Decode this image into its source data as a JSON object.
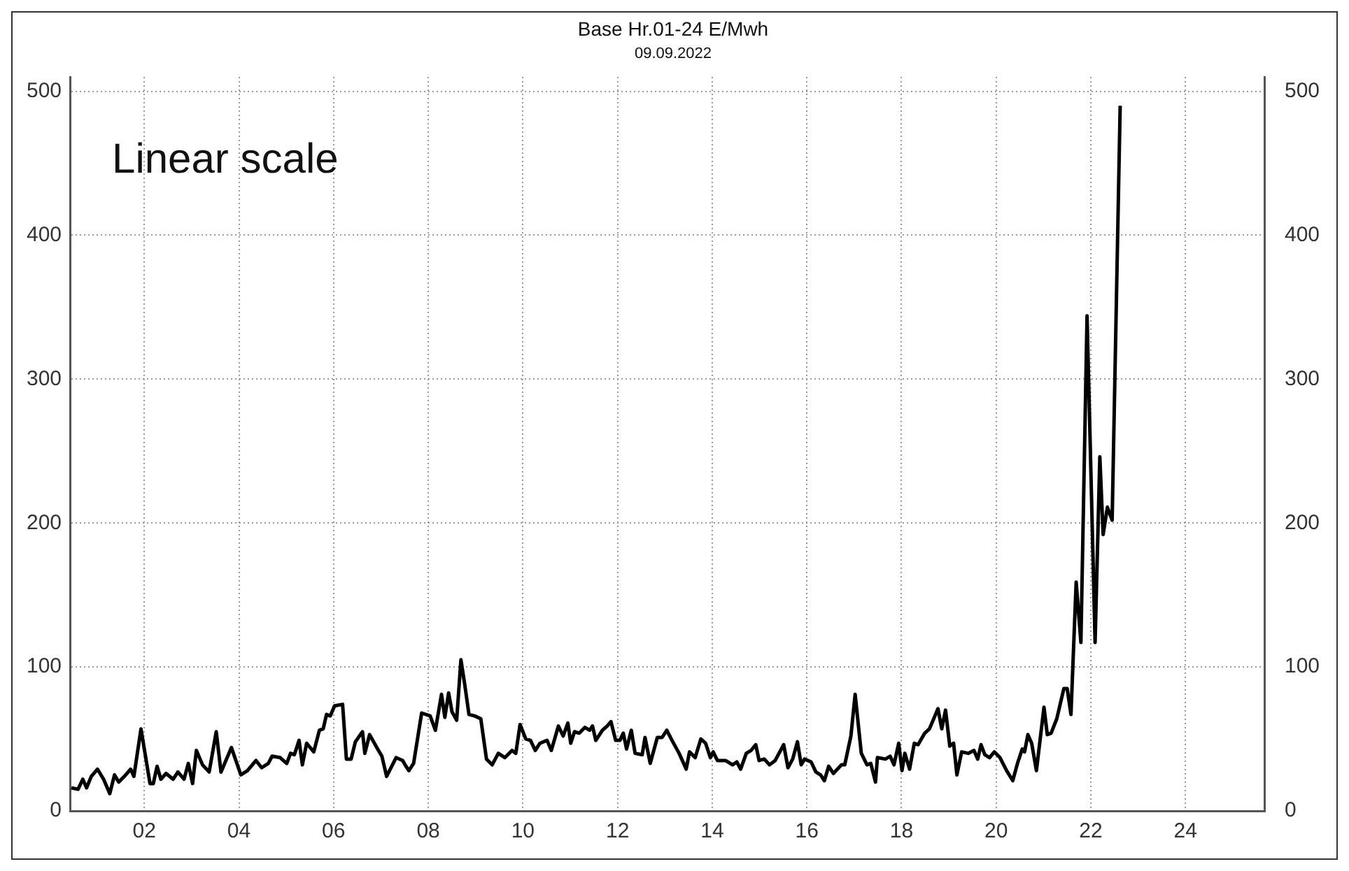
{
  "chart_data": {
    "type": "line",
    "title": "Base Hr.01-24 E/Mwh",
    "subtitle": "09.09.2022",
    "annotations": [
      "Linear scale"
    ],
    "xlim": [
      2000.43,
      2025.68
    ],
    "xticks": [
      {
        "value": 2002,
        "label": "02"
      },
      {
        "value": 2004,
        "label": "04"
      },
      {
        "value": 2006,
        "label": "06"
      },
      {
        "value": 2008,
        "label": "08"
      },
      {
        "value": 2010,
        "label": "10"
      },
      {
        "value": 2012,
        "label": "12"
      },
      {
        "value": 2014,
        "label": "14"
      },
      {
        "value": 2016,
        "label": "16"
      },
      {
        "value": 2018,
        "label": "18"
      },
      {
        "value": 2020,
        "label": "20"
      },
      {
        "value": 2022,
        "label": "22"
      },
      {
        "value": 2024,
        "label": "24"
      }
    ],
    "ylim": [
      0,
      510
    ],
    "yticks": [
      0,
      100,
      200,
      300,
      400,
      500
    ],
    "y2lim": [
      0,
      510
    ],
    "y2ticks": [
      0,
      100,
      200,
      300,
      400,
      500
    ],
    "grid": true,
    "legend": false,
    "marker": "none",
    "line_style": "solid",
    "series": [
      {
        "color": "#000000",
        "x": [
          2000.46,
          2000.6,
          2000.7,
          2000.78,
          2000.88,
          2001.01,
          2001.14,
          2001.27,
          2001.37,
          2001.46,
          2001.58,
          2001.71,
          2001.78,
          2001.93,
          2002.12,
          2002.19,
          2002.27,
          2002.35,
          2002.46,
          2002.61,
          2002.71,
          2002.84,
          2002.93,
          2003.02,
          2003.1,
          2003.23,
          2003.37,
          2003.52,
          2003.62,
          2003.84,
          2004.04,
          2004.18,
          2004.36,
          2004.48,
          2004.62,
          2004.7,
          2004.87,
          2005.01,
          2005.09,
          2005.17,
          2005.27,
          2005.34,
          2005.43,
          2005.58,
          2005.7,
          2005.78,
          2005.85,
          2005.93,
          2006.02,
          2006.19,
          2006.27,
          2006.37,
          2006.46,
          2006.61,
          2006.66,
          2006.76,
          2006.93,
          2007.02,
          2007.12,
          2007.32,
          2007.46,
          2007.51,
          2007.59,
          2007.69,
          2007.86,
          2008.04,
          2008.15,
          2008.28,
          2008.35,
          2008.43,
          2008.5,
          2008.6,
          2008.69,
          2008.77,
          2008.86,
          2008.98,
          2009.11,
          2009.23,
          2009.35,
          2009.48,
          2009.62,
          2009.77,
          2009.85,
          2009.94,
          2010.06,
          2010.16,
          2010.26,
          2010.36,
          2010.51,
          2010.6,
          2010.75,
          2010.85,
          2010.95,
          2011.01,
          2011.09,
          2011.19,
          2011.31,
          2011.41,
          2011.47,
          2011.54,
          2011.68,
          2011.78,
          2011.86,
          2011.96,
          2012.05,
          2012.12,
          2012.19,
          2012.29,
          2012.37,
          2012.52,
          2012.58,
          2012.69,
          2012.84,
          2012.94,
          2013.04,
          2013.15,
          2013.3,
          2013.45,
          2013.52,
          2013.64,
          2013.76,
          2013.86,
          2013.96,
          2014.02,
          2014.11,
          2014.28,
          2014.43,
          2014.52,
          2014.6,
          2014.72,
          2014.82,
          2014.92,
          2014.99,
          2015.1,
          2015.21,
          2015.33,
          2015.51,
          2015.6,
          2015.7,
          2015.8,
          2015.88,
          2015.95,
          2016.09,
          2016.19,
          2016.29,
          2016.37,
          2016.46,
          2016.56,
          2016.73,
          2016.8,
          2016.93,
          2017.02,
          2017.15,
          2017.27,
          2017.35,
          2017.45,
          2017.49,
          2017.66,
          2017.76,
          2017.84,
          2017.94,
          2018.01,
          2018.07,
          2018.17,
          2018.27,
          2018.35,
          2018.49,
          2018.59,
          2018.77,
          2018.85,
          2018.93,
          2019.02,
          2019.1,
          2019.17,
          2019.27,
          2019.41,
          2019.53,
          2019.61,
          2019.68,
          2019.76,
          2019.86,
          2019.96,
          2020.08,
          2020.22,
          2020.35,
          2020.45,
          2020.55,
          2020.6,
          2020.67,
          2020.75,
          2020.85,
          2021.01,
          2021.08,
          2021.16,
          2021.28,
          2021.43,
          2021.5,
          2021.58,
          2021.69,
          2021.79,
          2021.92,
          2022.09,
          2022.19,
          2022.26,
          2022.35,
          2022.45,
          2022.62
        ],
        "values": [
          16,
          15,
          22,
          16,
          24,
          29,
          22,
          12,
          25,
          20,
          24,
          29,
          24,
          57,
          19,
          19,
          31,
          22,
          26,
          22,
          27,
          22,
          33,
          19,
          42,
          32,
          27,
          55,
          27,
          44,
          25,
          28,
          35,
          30,
          33,
          38,
          37,
          33,
          40,
          39,
          49,
          32,
          47,
          41,
          56,
          57,
          67,
          66,
          73,
          74,
          36,
          36,
          48,
          55,
          40,
          53,
          43,
          38,
          24,
          37,
          35,
          32,
          28,
          33,
          68,
          66,
          56,
          81,
          65,
          82,
          69,
          63,
          105,
          88,
          67,
          66,
          64,
          36,
          32,
          40,
          37,
          42,
          40,
          60,
          50,
          49,
          42,
          47,
          49,
          42,
          59,
          52,
          61,
          47,
          55,
          54,
          58,
          56,
          59,
          49,
          56,
          59,
          62,
          49,
          49,
          54,
          43,
          56,
          40,
          39,
          51,
          33,
          51,
          51,
          56,
          49,
          40,
          29,
          41,
          37,
          50,
          47,
          37,
          41,
          35,
          35,
          32,
          34,
          29,
          40,
          42,
          46,
          35,
          36,
          32,
          35,
          46,
          30,
          36,
          48,
          32,
          36,
          34,
          27,
          25,
          21,
          31,
          26,
          32,
          32,
          52,
          81,
          40,
          32,
          33,
          20,
          37,
          36,
          38,
          32,
          47,
          28,
          40,
          29,
          47,
          46,
          54,
          57,
          71,
          57,
          70,
          45,
          47,
          25,
          41,
          40,
          42,
          36,
          46,
          39,
          37,
          41,
          37,
          28,
          21,
          33,
          43,
          41,
          53,
          47,
          28,
          72,
          53,
          54,
          64,
          85,
          85,
          67,
          159,
          117,
          344,
          117,
          246,
          192,
          211,
          202,
          490
        ]
      }
    ]
  }
}
